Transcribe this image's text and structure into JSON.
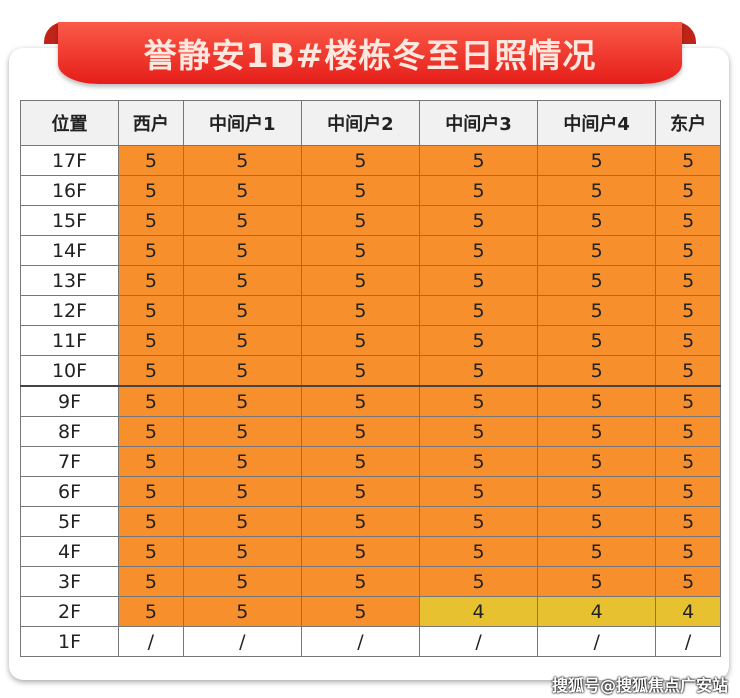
{
  "title": "誉静安1B#楼栋冬至日照情况",
  "headers": [
    "位置",
    "西户",
    "中间户1",
    "中间户2",
    "中间户3",
    "中间户4",
    "东户"
  ],
  "rows": [
    {
      "floor": "17F",
      "values": [
        "5",
        "5",
        "5",
        "5",
        "5",
        "5"
      ]
    },
    {
      "floor": "16F",
      "values": [
        "5",
        "5",
        "5",
        "5",
        "5",
        "5"
      ]
    },
    {
      "floor": "15F",
      "values": [
        "5",
        "5",
        "5",
        "5",
        "5",
        "5"
      ]
    },
    {
      "floor": "14F",
      "values": [
        "5",
        "5",
        "5",
        "5",
        "5",
        "5"
      ]
    },
    {
      "floor": "13F",
      "values": [
        "5",
        "5",
        "5",
        "5",
        "5",
        "5"
      ]
    },
    {
      "floor": "12F",
      "values": [
        "5",
        "5",
        "5",
        "5",
        "5",
        "5"
      ]
    },
    {
      "floor": "11F",
      "values": [
        "5",
        "5",
        "5",
        "5",
        "5",
        "5"
      ]
    },
    {
      "floor": "10F",
      "values": [
        "5",
        "5",
        "5",
        "5",
        "5",
        "5"
      ]
    },
    {
      "floor": "9F",
      "values": [
        "5",
        "5",
        "5",
        "5",
        "5",
        "5"
      ]
    },
    {
      "floor": "8F",
      "values": [
        "5",
        "5",
        "5",
        "5",
        "5",
        "5"
      ]
    },
    {
      "floor": "7F",
      "values": [
        "5",
        "5",
        "5",
        "5",
        "5",
        "5"
      ]
    },
    {
      "floor": "6F",
      "values": [
        "5",
        "5",
        "5",
        "5",
        "5",
        "5"
      ]
    },
    {
      "floor": "5F",
      "values": [
        "5",
        "5",
        "5",
        "5",
        "5",
        "5"
      ]
    },
    {
      "floor": "4F",
      "values": [
        "5",
        "5",
        "5",
        "5",
        "5",
        "5"
      ]
    },
    {
      "floor": "3F",
      "values": [
        "5",
        "5",
        "5",
        "5",
        "5",
        "5"
      ]
    },
    {
      "floor": "2F",
      "values": [
        "5",
        "5",
        "5",
        "4",
        "4",
        "4"
      ]
    },
    {
      "floor": "1F",
      "values": [
        "/",
        "/",
        "/",
        "/",
        "/",
        "/"
      ]
    }
  ],
  "colors": {
    "five": "#f78f2c",
    "four": "#e8c130",
    "banner": "#e51e1a"
  },
  "watermark": "搜狐号@搜狐焦点广安站"
}
